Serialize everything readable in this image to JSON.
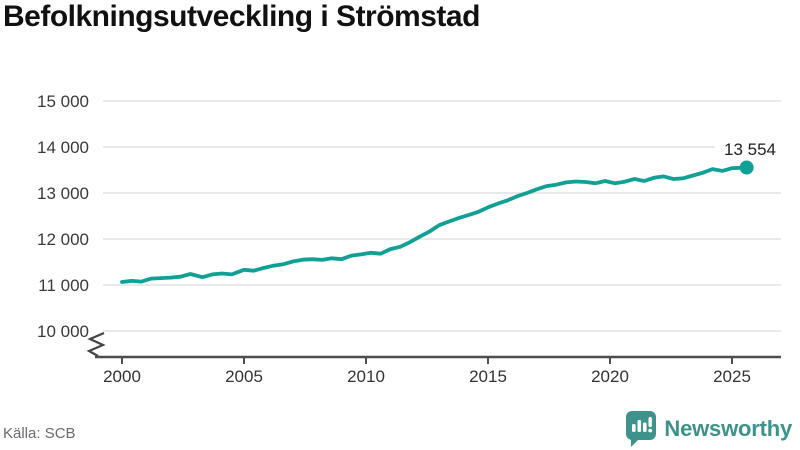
{
  "title": "Befolkningsutveckling i Strömstad",
  "source": "Källa: SCB",
  "branding": {
    "name": "Newsworthy",
    "icon": "newsworthy-bubble-barchart-icon",
    "color": "#3d938c"
  },
  "colors": {
    "line": "#10a095",
    "grid": "#e2e2e2",
    "axis": "#4e4e4e",
    "title_text": "#111111",
    "background": "#ffffff"
  },
  "chart_data": {
    "type": "line",
    "title": "Befolkningsutveckling i Strömstad",
    "xlabel": "",
    "ylabel": "",
    "grid": "horizontal",
    "legend": "none",
    "y_axis_break": true,
    "x_ticks": [
      2000,
      2005,
      2010,
      2015,
      2020,
      2025
    ],
    "y_ticks": [
      10000,
      11000,
      12000,
      13000,
      14000,
      15000
    ],
    "ylim_shown": [
      10000,
      15000
    ],
    "end_label": "13 554",
    "end_value": 13554,
    "series": [
      {
        "name": "Befolkning i Strömstad",
        "color": "#10a095",
        "points": [
          [
            2000.0,
            11065
          ],
          [
            2000.4,
            11090
          ],
          [
            2000.8,
            11075
          ],
          [
            2001.2,
            11140
          ],
          [
            2001.6,
            11150
          ],
          [
            2002.0,
            11160
          ],
          [
            2002.4,
            11180
          ],
          [
            2002.8,
            11240
          ],
          [
            2003.3,
            11170
          ],
          [
            2003.7,
            11230
          ],
          [
            2004.1,
            11250
          ],
          [
            2004.5,
            11230
          ],
          [
            2005.0,
            11330
          ],
          [
            2005.4,
            11310
          ],
          [
            2005.8,
            11370
          ],
          [
            2006.2,
            11420
          ],
          [
            2006.6,
            11450
          ],
          [
            2007.0,
            11510
          ],
          [
            2007.4,
            11550
          ],
          [
            2007.8,
            11560
          ],
          [
            2008.2,
            11545
          ],
          [
            2008.6,
            11580
          ],
          [
            2009.0,
            11560
          ],
          [
            2009.4,
            11640
          ],
          [
            2009.8,
            11665
          ],
          [
            2010.2,
            11700
          ],
          [
            2010.6,
            11680
          ],
          [
            2011.0,
            11780
          ],
          [
            2011.4,
            11830
          ],
          [
            2011.8,
            11930
          ],
          [
            2012.2,
            12050
          ],
          [
            2012.6,
            12160
          ],
          [
            2013.0,
            12300
          ],
          [
            2013.4,
            12380
          ],
          [
            2013.8,
            12455
          ],
          [
            2014.2,
            12520
          ],
          [
            2014.6,
            12590
          ],
          [
            2015.0,
            12690
          ],
          [
            2015.4,
            12770
          ],
          [
            2015.8,
            12840
          ],
          [
            2016.2,
            12930
          ],
          [
            2016.6,
            13000
          ],
          [
            2017.0,
            13080
          ],
          [
            2017.4,
            13150
          ],
          [
            2017.8,
            13180
          ],
          [
            2018.2,
            13230
          ],
          [
            2018.6,
            13250
          ],
          [
            2019.0,
            13240
          ],
          [
            2019.4,
            13210
          ],
          [
            2019.8,
            13260
          ],
          [
            2020.2,
            13210
          ],
          [
            2020.6,
            13245
          ],
          [
            2021.0,
            13305
          ],
          [
            2021.4,
            13260
          ],
          [
            2021.8,
            13330
          ],
          [
            2022.2,
            13360
          ],
          [
            2022.6,
            13305
          ],
          [
            2023.0,
            13320
          ],
          [
            2023.4,
            13380
          ],
          [
            2023.8,
            13440
          ],
          [
            2024.2,
            13520
          ],
          [
            2024.6,
            13480
          ],
          [
            2025.0,
            13540
          ],
          [
            2025.6,
            13554
          ]
        ]
      }
    ]
  }
}
